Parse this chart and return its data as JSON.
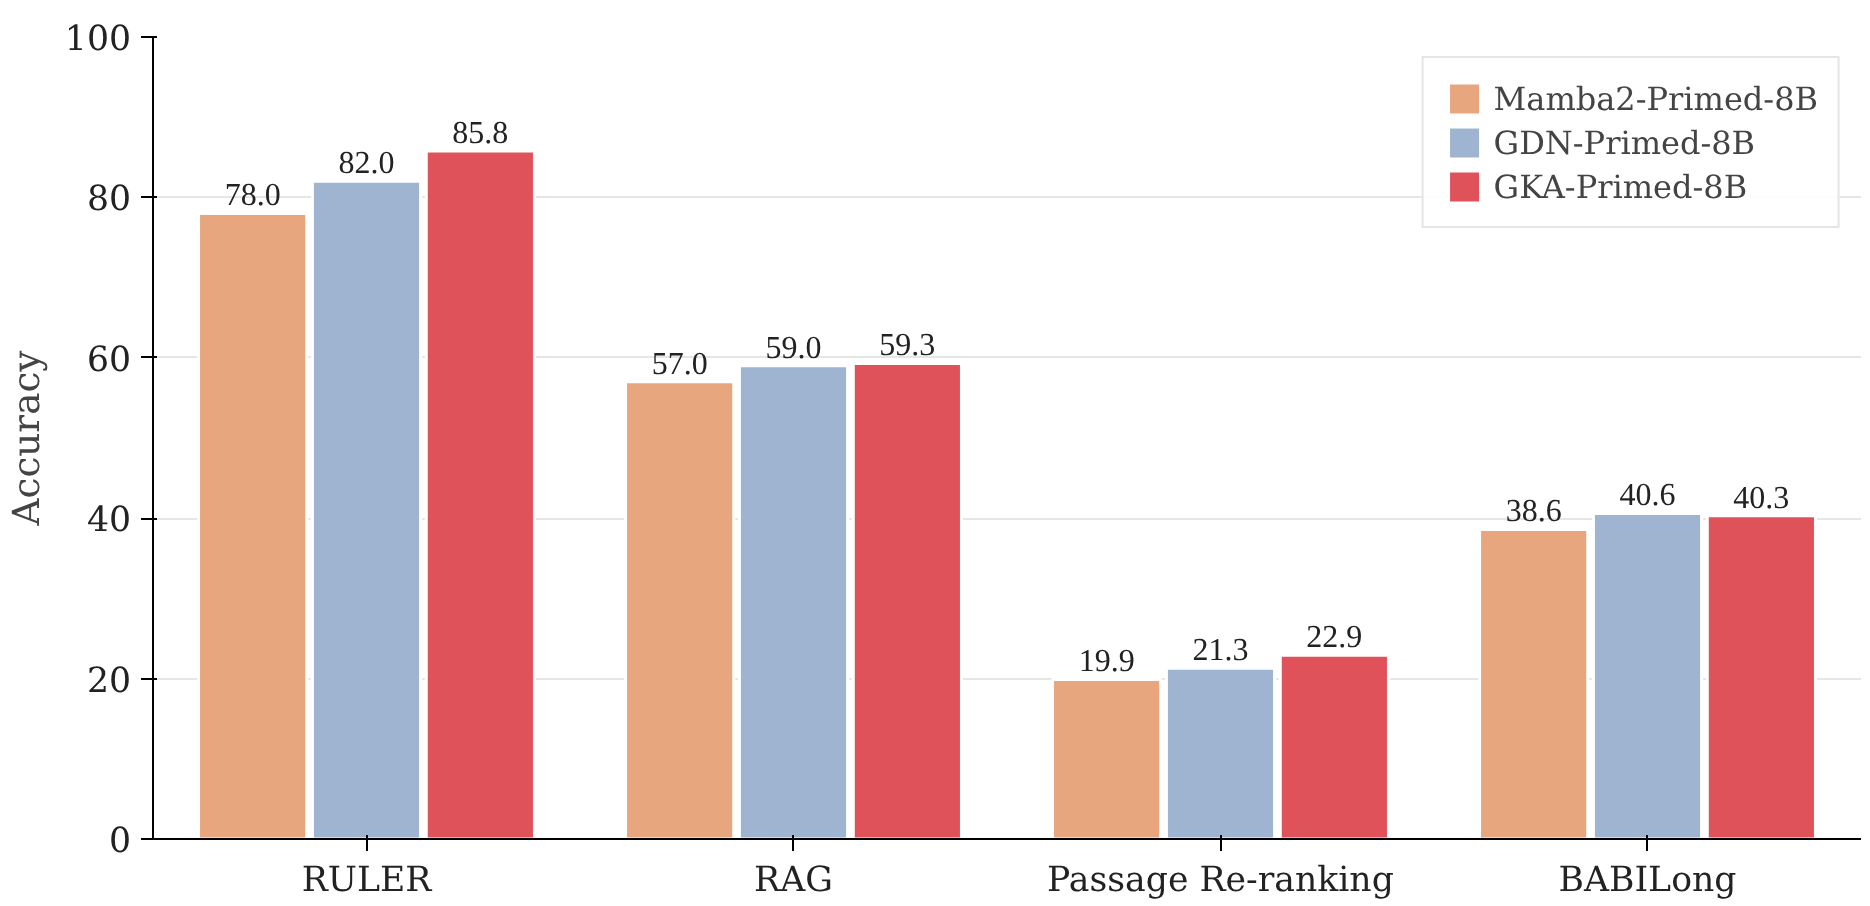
{
  "chart_data": {
    "type": "bar",
    "ylabel": "Accuracy",
    "categories": [
      "RULER",
      "RAG",
      "Passage Re-ranking",
      "BABILong"
    ],
    "series": [
      {
        "name": "Mamba2-Primed-8B",
        "color": "#e8a67e",
        "values": [
          78.0,
          57.0,
          19.9,
          38.6
        ],
        "value_labels": [
          "78.0",
          "57.0",
          "19.9",
          "38.6"
        ]
      },
      {
        "name": "GDN-Primed-8B",
        "color": "#9eb4d0",
        "values": [
          82.0,
          59.0,
          21.3,
          40.6
        ],
        "value_labels": [
          "82.0",
          "59.0",
          "21.3",
          "40.6"
        ]
      },
      {
        "name": "GKA-Primed-8B",
        "color": "#e0525a",
        "values": [
          85.8,
          59.3,
          22.9,
          40.3
        ],
        "value_labels": [
          "85.8",
          "59.3",
          "22.9",
          "40.3"
        ]
      }
    ],
    "ylim": [
      0,
      100
    ],
    "yticks": [
      0,
      20,
      40,
      60,
      80,
      100
    ],
    "grid": "y",
    "legend": "top right"
  }
}
